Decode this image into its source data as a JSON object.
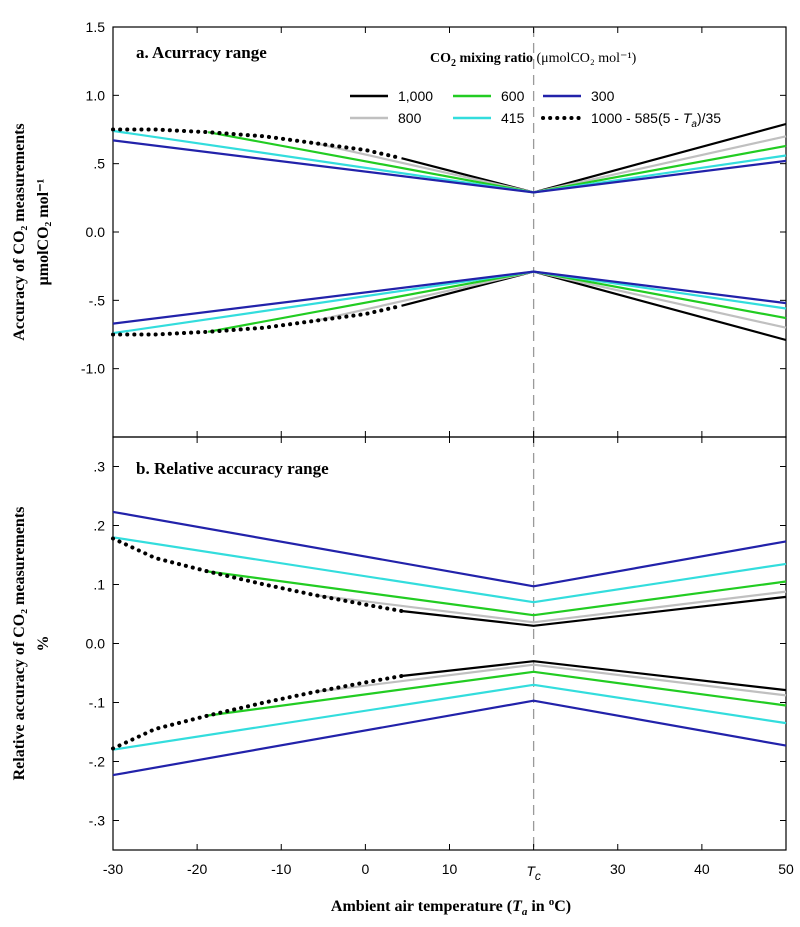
{
  "chart_data": [
    {
      "type": "line",
      "panel_label": "a. Acurracy range",
      "ylabel_line1": "Accuracy of CO₂ measurements",
      "ylabel_line2": "μmolCO₂ mol⁻¹",
      "xlim": [
        -30,
        50
      ],
      "ylim": [
        -1.5,
        1.5
      ],
      "y_ticks": [
        {
          "v": 1.5,
          "label": "1.5"
        },
        {
          "v": 1.0,
          "label": "1.0"
        },
        {
          "v": 0.5,
          "label": ".5"
        },
        {
          "v": 0.0,
          "label": "0.0"
        },
        {
          "v": -0.5,
          "label": "-.5"
        },
        {
          "v": -1.0,
          "label": "-1.0"
        }
      ],
      "vline_x": 20,
      "series": [
        {
          "name": "1,000",
          "color": "#000000",
          "dotted": false,
          "x": [
            4.3,
            20,
            50
          ],
          "y_upper": [
            0.54,
            0.29,
            0.79
          ],
          "y_lower": [
            -0.54,
            -0.29,
            -0.79
          ]
        },
        {
          "name": "800",
          "color": "#c0c0c0",
          "dotted": false,
          "x": [
            -6,
            20,
            50
          ],
          "y_upper": [
            0.65,
            0.29,
            0.7
          ],
          "y_lower": [
            -0.65,
            -0.29,
            -0.7
          ]
        },
        {
          "name": "600",
          "color": "#22cc22",
          "dotted": false,
          "x": [
            -18.7,
            20,
            50
          ],
          "y_upper": [
            0.73,
            0.29,
            0.63
          ],
          "y_lower": [
            -0.73,
            -0.29,
            -0.63
          ]
        },
        {
          "name": "415",
          "color": "#33dddd",
          "dotted": false,
          "x": [
            -30,
            20,
            50
          ],
          "y_upper": [
            0.74,
            0.29,
            0.56
          ],
          "y_lower": [
            -0.74,
            -0.29,
            -0.56
          ]
        },
        {
          "name": "300",
          "color": "#2222aa",
          "dotted": false,
          "x": [
            -30,
            20,
            50
          ],
          "y_upper": [
            0.67,
            0.29,
            0.52
          ],
          "y_lower": [
            -0.67,
            -0.29,
            -0.52
          ]
        },
        {
          "name": "1000 - 585(5 - Ta)/35",
          "color": "#000000",
          "dotted": true,
          "x": [
            -30,
            -25,
            -18.7,
            -12,
            -6,
            0,
            4.3
          ],
          "y_upper": [
            0.75,
            0.75,
            0.73,
            0.7,
            0.65,
            0.6,
            0.54
          ],
          "y_lower": [
            -0.75,
            -0.75,
            -0.73,
            -0.7,
            -0.65,
            -0.6,
            -0.54
          ]
        }
      ],
      "legend": {
        "title_pre": "CO",
        "title_sub": "2",
        "title_mid": " mixing ratio ",
        "title_unit": "(μmolCO₂ mol⁻¹)",
        "entries": [
          "1,000",
          "600",
          "300",
          "800",
          "415",
          "1000 - 585(5 - Ta)/35"
        ]
      }
    },
    {
      "type": "line",
      "panel_label": "b. Relative accuracy range",
      "ylabel_line1": "Relative accuracy of CO₂ measurements",
      "ylabel_line2": "%",
      "xlim": [
        -30,
        50
      ],
      "ylim": [
        -0.35,
        0.35
      ],
      "y_ticks": [
        {
          "v": 0.3,
          "label": ".3"
        },
        {
          "v": 0.2,
          "label": ".2"
        },
        {
          "v": 0.1,
          "label": ".1"
        },
        {
          "v": 0.0,
          "label": "0.0"
        },
        {
          "v": -0.1,
          "label": "-.1"
        },
        {
          "v": -0.2,
          "label": "-.2"
        },
        {
          "v": -0.3,
          "label": "-.3"
        }
      ],
      "vline_x": 20,
      "series": [
        {
          "name": "1,000",
          "color": "#000000",
          "dotted": false,
          "x": [
            4.3,
            20,
            50
          ],
          "y_upper": [
            0.055,
            0.03,
            0.079
          ],
          "y_lower": [
            -0.055,
            -0.03,
            -0.079
          ]
        },
        {
          "name": "800",
          "color": "#c0c0c0",
          "dotted": false,
          "x": [
            -6,
            20,
            50
          ],
          "y_upper": [
            0.082,
            0.036,
            0.088
          ],
          "y_lower": [
            -0.082,
            -0.036,
            -0.088
          ]
        },
        {
          "name": "600",
          "color": "#22cc22",
          "dotted": false,
          "x": [
            -18.7,
            20,
            50
          ],
          "y_upper": [
            0.122,
            0.048,
            0.105
          ],
          "y_lower": [
            -0.122,
            -0.048,
            -0.105
          ]
        },
        {
          "name": "415",
          "color": "#33dddd",
          "dotted": false,
          "x": [
            -30,
            20,
            50
          ],
          "y_upper": [
            0.18,
            0.07,
            0.135
          ],
          "y_lower": [
            -0.18,
            -0.07,
            -0.135
          ]
        },
        {
          "name": "300",
          "color": "#2222aa",
          "dotted": false,
          "x": [
            -30,
            20,
            50
          ],
          "y_upper": [
            0.223,
            0.097,
            0.173
          ],
          "y_lower": [
            -0.223,
            -0.097,
            -0.173
          ]
        },
        {
          "name": "1000 - 585(5 - Ta)/35",
          "color": "#000000",
          "dotted": true,
          "x": [
            -30,
            -25,
            -18.7,
            -12,
            -6,
            0,
            4.3
          ],
          "y_upper": [
            0.178,
            0.145,
            0.122,
            0.1,
            0.082,
            0.066,
            0.055
          ],
          "y_lower": [
            -0.178,
            -0.145,
            -0.122,
            -0.1,
            -0.082,
            -0.066,
            -0.055
          ]
        }
      ]
    }
  ],
  "x_axis": {
    "ticks": [
      {
        "v": -30,
        "label": "-30"
      },
      {
        "v": -20,
        "label": "-20"
      },
      {
        "v": -10,
        "label": "-10"
      },
      {
        "v": 0,
        "label": "0"
      },
      {
        "v": 10,
        "label": "10"
      },
      {
        "v": 20,
        "label": "T",
        "sub": "c"
      },
      {
        "v": 30,
        "label": "30"
      },
      {
        "v": 40,
        "label": "40"
      },
      {
        "v": 50,
        "label": "50"
      }
    ],
    "title_pre": "Ambient air temperature (",
    "title_var": "T",
    "title_var_sub": "a",
    "title_post": " in ",
    "title_deg": "o",
    "title_unit": "C)"
  }
}
